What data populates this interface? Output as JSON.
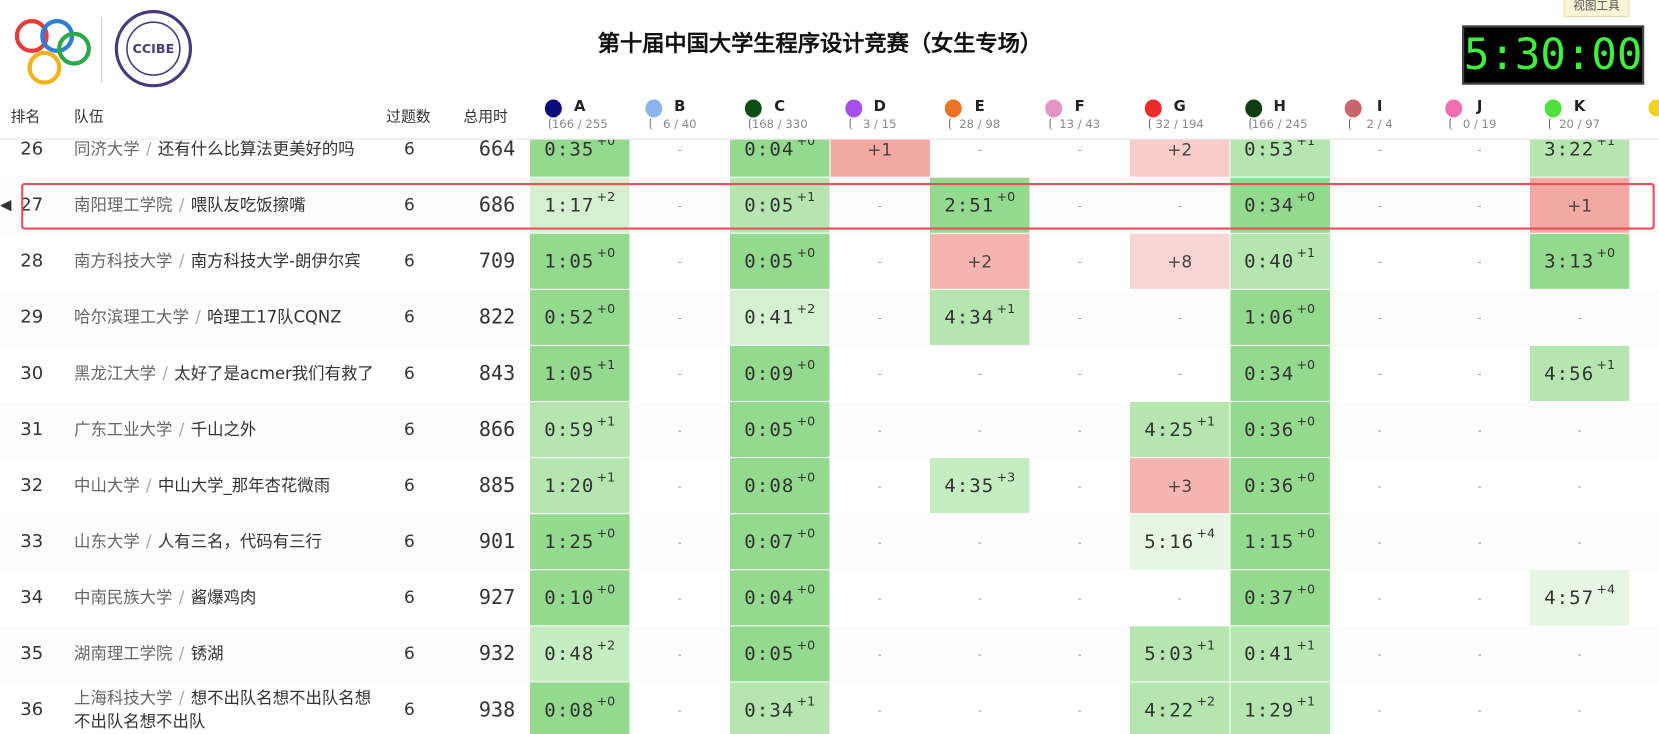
{
  "header": {
    "title": "第十届中国大学生程序设计竞赛（女生专场）",
    "timer": "5:30:00",
    "tool_button": "视图工具",
    "logo_text": "CCIBE"
  },
  "columns": [
    "排名",
    "队伍",
    "过题数",
    "总用时"
  ],
  "separator": "/",
  "dash": "-",
  "problems": [
    {
      "letter": "A",
      "color": "#0a0a7a",
      "stats": "166 / 255"
    },
    {
      "letter": "B",
      "color": "#8cb4ec",
      "stats": "6 / 40"
    },
    {
      "letter": "C",
      "color": "#0e4d14",
      "stats": "168 / 330"
    },
    {
      "letter": "D",
      "color": "#a64ef2",
      "stats": "3 / 15"
    },
    {
      "letter": "E",
      "color": "#ec7324",
      "stats": "28 / 98"
    },
    {
      "letter": "F",
      "color": "#e394c4",
      "stats": "13 / 43"
    },
    {
      "letter": "G",
      "color": "#ee2a2a",
      "stats": "32 / 194"
    },
    {
      "letter": "H",
      "color": "#0e3d14",
      "stats": "166 / 245"
    },
    {
      "letter": "I",
      "color": "#c9646a",
      "stats": "2 / 4"
    },
    {
      "letter": "J",
      "color": "#f06fb0",
      "stats": "0 / 19"
    },
    {
      "letter": "K",
      "color": "#4ee03c",
      "stats": "20 / 97"
    }
  ],
  "rows": [
    {
      "rank": 26,
      "school": "同济大学",
      "team": "还有什么比算法更美好的吗",
      "solved": 6,
      "penalty": 664,
      "cells": [
        {
          "time": "0:35",
          "tries": "+0",
          "bg": "#93d98e"
        },
        "-",
        {
          "time": "0:04",
          "tries": "+0",
          "bg": "#93d98e"
        },
        {
          "tries": "+1",
          "bg": "#f4a8a3"
        },
        "-",
        "-",
        {
          "tries": "+2",
          "bg": "#f8cdcb"
        },
        {
          "time": "0:53",
          "tries": "+1",
          "bg": "#b5e6b0"
        },
        "-",
        "-",
        {
          "time": "3:22",
          "tries": "+1",
          "bg": "#b5e6b0"
        }
      ]
    },
    {
      "rank": 27,
      "school": "南阳理工学院",
      "team": "喂队友吃饭擦嘴",
      "solved": 6,
      "penalty": 686,
      "highlight": true,
      "cells": [
        {
          "time": "1:17",
          "tries": "+2",
          "bg": "#d4f0d0"
        },
        "-",
        {
          "time": "0:05",
          "tries": "+1",
          "bg": "#b5e6b0"
        },
        "-",
        {
          "time": "2:51",
          "tries": "+0",
          "bg": "#93d98e"
        },
        "-",
        "-",
        {
          "time": "0:34",
          "tries": "+0",
          "bg": "#93d98e"
        },
        "-",
        "-",
        {
          "tries": "+1",
          "bg": "#f4a8a3"
        }
      ]
    },
    {
      "rank": 28,
      "school": "南方科技大学",
      "team": "南方科技大学-朗伊尔宾",
      "solved": 6,
      "penalty": 709,
      "cells": [
        {
          "time": "1:05",
          "tries": "+0",
          "bg": "#93d98e"
        },
        "-",
        {
          "time": "0:05",
          "tries": "+0",
          "bg": "#93d98e"
        },
        "-",
        {
          "tries": "+2",
          "bg": "#f4b5b0"
        },
        "-",
        {
          "tries": "+8",
          "bg": "#f8d5d3"
        },
        {
          "time": "0:40",
          "tries": "+1",
          "bg": "#b5e6b0"
        },
        "-",
        "-",
        {
          "time": "3:13",
          "tries": "+0",
          "bg": "#93d98e"
        }
      ]
    },
    {
      "rank": 29,
      "school": "哈尔滨理工大学",
      "team": "哈理工17队CQNZ",
      "solved": 6,
      "penalty": 822,
      "cells": [
        {
          "time": "0:52",
          "tries": "+0",
          "bg": "#93d98e"
        },
        "-",
        {
          "time": "0:41",
          "tries": "+2",
          "bg": "#d4f0d0"
        },
        "-",
        {
          "time": "4:34",
          "tries": "+1",
          "bg": "#b5e6b0"
        },
        "-",
        "-",
        {
          "time": "1:06",
          "tries": "+0",
          "bg": "#93d98e"
        },
        "-",
        "-",
        "-"
      ]
    },
    {
      "rank": 30,
      "school": "黑龙江大学",
      "team": "太好了是acmer我们有救了",
      "solved": 6,
      "penalty": 843,
      "cells": [
        {
          "time": "1:05",
          "tries": "+1",
          "bg": "#93d98e"
        },
        "-",
        {
          "time": "0:09",
          "tries": "+0",
          "bg": "#93d98e"
        },
        "-",
        "-",
        "-",
        "-",
        {
          "time": "0:34",
          "tries": "+0",
          "bg": "#93d98e"
        },
        "-",
        "-",
        {
          "time": "4:56",
          "tries": "+1",
          "bg": "#b5e6b0"
        }
      ]
    },
    {
      "rank": 31,
      "school": "广东工业大学",
      "team": "千山之外",
      "solved": 6,
      "penalty": 866,
      "cells": [
        {
          "time": "0:59",
          "tries": "+1",
          "bg": "#b5e6b0"
        },
        "-",
        {
          "time": "0:05",
          "tries": "+0",
          "bg": "#93d98e"
        },
        "-",
        "-",
        "-",
        {
          "time": "4:25",
          "tries": "+1",
          "bg": "#b5e6b0"
        },
        {
          "time": "0:36",
          "tries": "+0",
          "bg": "#93d98e"
        },
        "-",
        "-",
        "-"
      ]
    },
    {
      "rank": 32,
      "school": "中山大学",
      "team": "中山大学_那年杏花微雨",
      "solved": 6,
      "penalty": 885,
      "cells": [
        {
          "time": "1:20",
          "tries": "+1",
          "bg": "#b5e6b0"
        },
        "-",
        {
          "time": "0:08",
          "tries": "+0",
          "bg": "#93d98e"
        },
        "-",
        {
          "time": "4:35",
          "tries": "+3",
          "bg": "#c6ecc1"
        },
        "-",
        {
          "tries": "+3",
          "bg": "#f4b5b0"
        },
        {
          "time": "0:36",
          "tries": "+0",
          "bg": "#93d98e"
        },
        "-",
        "-",
        "-"
      ]
    },
    {
      "rank": 33,
      "school": "山东大学",
      "team": "人有三名，代码有三行",
      "solved": 6,
      "penalty": 901,
      "cells": [
        {
          "time": "1:25",
          "tries": "+0",
          "bg": "#93d98e"
        },
        "-",
        {
          "time": "0:07",
          "tries": "+0",
          "bg": "#93d98e"
        },
        "-",
        "-",
        "-",
        {
          "time": "5:16",
          "tries": "+4",
          "bg": "#e6f6e3"
        },
        {
          "time": "1:15",
          "tries": "+0",
          "bg": "#93d98e"
        },
        "-",
        "-",
        "-"
      ]
    },
    {
      "rank": 34,
      "school": "中南民族大学",
      "team": "酱爆鸡肉",
      "solved": 6,
      "penalty": 927,
      "cells": [
        {
          "time": "0:10",
          "tries": "+0",
          "bg": "#93d98e"
        },
        "-",
        {
          "time": "0:04",
          "tries": "+0",
          "bg": "#93d98e"
        },
        "-",
        "-",
        "-",
        "-",
        {
          "time": "0:37",
          "tries": "+0",
          "bg": "#93d98e"
        },
        "-",
        "-",
        {
          "time": "4:57",
          "tries": "+4",
          "bg": "#e6f6e3"
        }
      ]
    },
    {
      "rank": 35,
      "school": "湖南理工学院",
      "team": "锈湖",
      "solved": 6,
      "penalty": 932,
      "cells": [
        {
          "time": "0:48",
          "tries": "+2",
          "bg": "#c6ecc1"
        },
        "-",
        {
          "time": "0:05",
          "tries": "+0",
          "bg": "#93d98e"
        },
        "-",
        "-",
        "-",
        {
          "time": "5:03",
          "tries": "+1",
          "bg": "#b5e6b0"
        },
        {
          "time": "0:41",
          "tries": "+1",
          "bg": "#b5e6b0"
        },
        "-",
        "-",
        "-"
      ]
    },
    {
      "rank": 36,
      "school": "上海科技大学",
      "team": "想不出队名想不出队名想不出队名想不出队",
      "solved": 6,
      "penalty": 938,
      "cells": [
        {
          "time": "0:08",
          "tries": "+0",
          "bg": "#93d98e"
        },
        "-",
        {
          "time": "0:34",
          "tries": "+1",
          "bg": "#b5e6b0"
        },
        "-",
        "-",
        "-",
        {
          "time": "4:22",
          "tries": "+2",
          "bg": "#b5e6b0"
        },
        {
          "time": "1:29",
          "tries": "+1",
          "bg": "#b5e6b0"
        },
        "-",
        "-",
        "-"
      ]
    }
  ]
}
